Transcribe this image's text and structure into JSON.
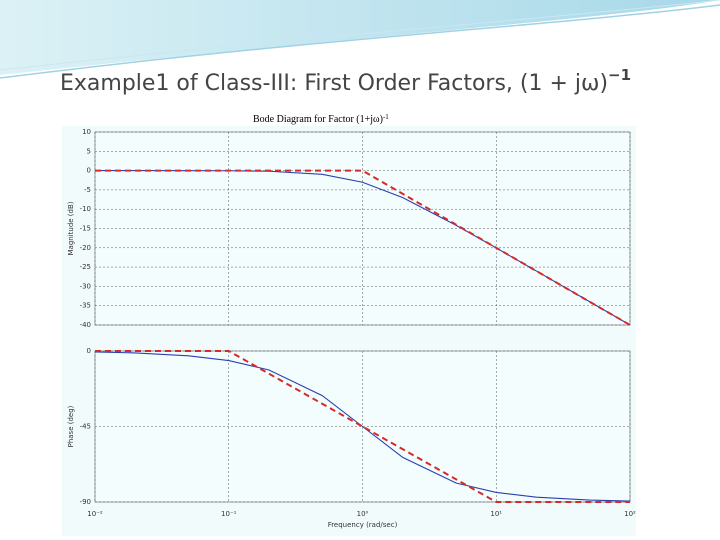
{
  "slide": {
    "title": "Example1 of Class-III: First Order Factors, (1 + jω)",
    "title_exponent": "−1",
    "subtitle": "Bode Diagram for Factor (1+jω)",
    "subtitle_exponent": "-1"
  },
  "chart_data": [
    {
      "type": "line",
      "xscale": "log",
      "ylabel": "Magnitude (dB)",
      "xlim": [
        0.01,
        100
      ],
      "xticks": [
        0.01,
        0.1,
        1,
        10,
        100
      ],
      "ylim": [
        -40,
        10
      ],
      "yticks": [
        -40,
        -35,
        -30,
        -25,
        -20,
        -15,
        -10,
        -5,
        0,
        5,
        10
      ],
      "grid": true,
      "series": [
        {
          "color": "#2b3fb0",
          "dashed": false,
          "x": [
            0.01,
            0.02,
            0.05,
            0.1,
            0.2,
            0.5,
            1,
            2,
            5,
            10,
            20,
            50,
            100
          ],
          "values": [
            0,
            0,
            -0.01,
            -0.04,
            -0.17,
            -0.97,
            -3.01,
            -6.99,
            -14.15,
            -20.04,
            -26.03,
            -33.98,
            -40
          ]
        },
        {
          "color": "#d42a2a",
          "dashed": true,
          "x": [
            0.01,
            1,
            100
          ],
          "values": [
            0,
            0,
            -40
          ]
        }
      ]
    },
    {
      "type": "line",
      "xscale": "log",
      "ylabel": "Phase (deg)",
      "xlabel": "Frequency (rad/sec)",
      "xlim": [
        0.01,
        100
      ],
      "xticks": [
        {
          "value": 0.01,
          "label": "10⁻²"
        },
        {
          "value": 0.1,
          "label": "10⁻¹"
        },
        {
          "value": 1,
          "label": "10⁰"
        },
        {
          "value": 10,
          "label": "10¹"
        },
        {
          "value": 100,
          "label": "10²"
        }
      ],
      "ylim": [
        -90,
        0
      ],
      "yticks": [
        -90,
        -45,
        0
      ],
      "grid": true,
      "series": [
        {
          "color": "#2b3fb0",
          "dashed": false,
          "x": [
            0.01,
            0.02,
            0.05,
            0.1,
            0.2,
            0.5,
            1,
            2,
            5,
            10,
            20,
            50,
            100
          ],
          "values": [
            -0.57,
            -1.15,
            -2.86,
            -5.71,
            -11.31,
            -26.57,
            -45,
            -63.43,
            -78.69,
            -84.29,
            -87.14,
            -88.85,
            -89.43
          ]
        },
        {
          "color": "#d42a2a",
          "dashed": true,
          "x": [
            0.01,
            0.1,
            10,
            100
          ],
          "values": [
            0,
            0,
            -90,
            -90
          ]
        }
      ]
    }
  ]
}
